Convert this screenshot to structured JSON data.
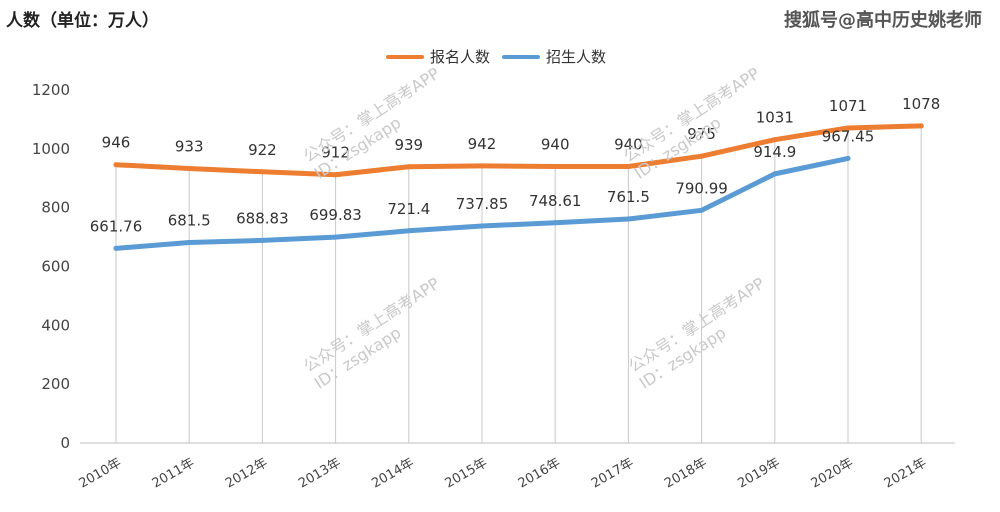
{
  "header": {
    "unit_label": "人数（单位：万人）",
    "corner_watermark": "搜狐号@高中历史姚老师"
  },
  "watermarks": [
    {
      "line1": "公众号：掌上高考APP",
      "line2": "ID：zsgkapp"
    },
    {
      "line1": "公众号：掌上高考APP",
      "line2": "ID：zsgkapp"
    },
    {
      "line1": "公众号：掌上高考APP",
      "line2": "ID：zsgkapp"
    },
    {
      "line1": "公众号：掌上高考APP",
      "line2": "ID：zsgkapp"
    }
  ],
  "chart_data": {
    "type": "line",
    "categories": [
      "2010年",
      "2011年",
      "2012年",
      "2013年",
      "2014年",
      "2015年",
      "2016年",
      "2017年",
      "2018年",
      "2019年",
      "2020年",
      "2021年"
    ],
    "ylim": [
      0,
      1200
    ],
    "yticks": [
      0,
      200,
      400,
      600,
      800,
      1000,
      1200
    ],
    "grid": "vertical drop lines at each category",
    "legend_position": "top-center",
    "series": [
      {
        "name": "报名人数",
        "color": "#ED7D31",
        "values": [
          946,
          933,
          922,
          912,
          939,
          942,
          940,
          940,
          975,
          1031,
          1071,
          1078
        ],
        "labels": [
          "946",
          "933",
          "922",
          "912",
          "939",
          "942",
          "940",
          "940",
          "975",
          "1031",
          "1071",
          "1078"
        ]
      },
      {
        "name": "招生人数",
        "color": "#5B9BD5",
        "values": [
          661.76,
          681.5,
          688.83,
          699.83,
          721.4,
          737.85,
          748.61,
          761.5,
          790.99,
          914.9,
          967.45,
          null
        ],
        "labels": [
          "661.76",
          "681.5",
          "688.83",
          "699.83",
          "721.4",
          "737.85",
          "748.61",
          "761.5",
          "790.99",
          "914.9",
          "967.45",
          ""
        ]
      }
    ]
  }
}
